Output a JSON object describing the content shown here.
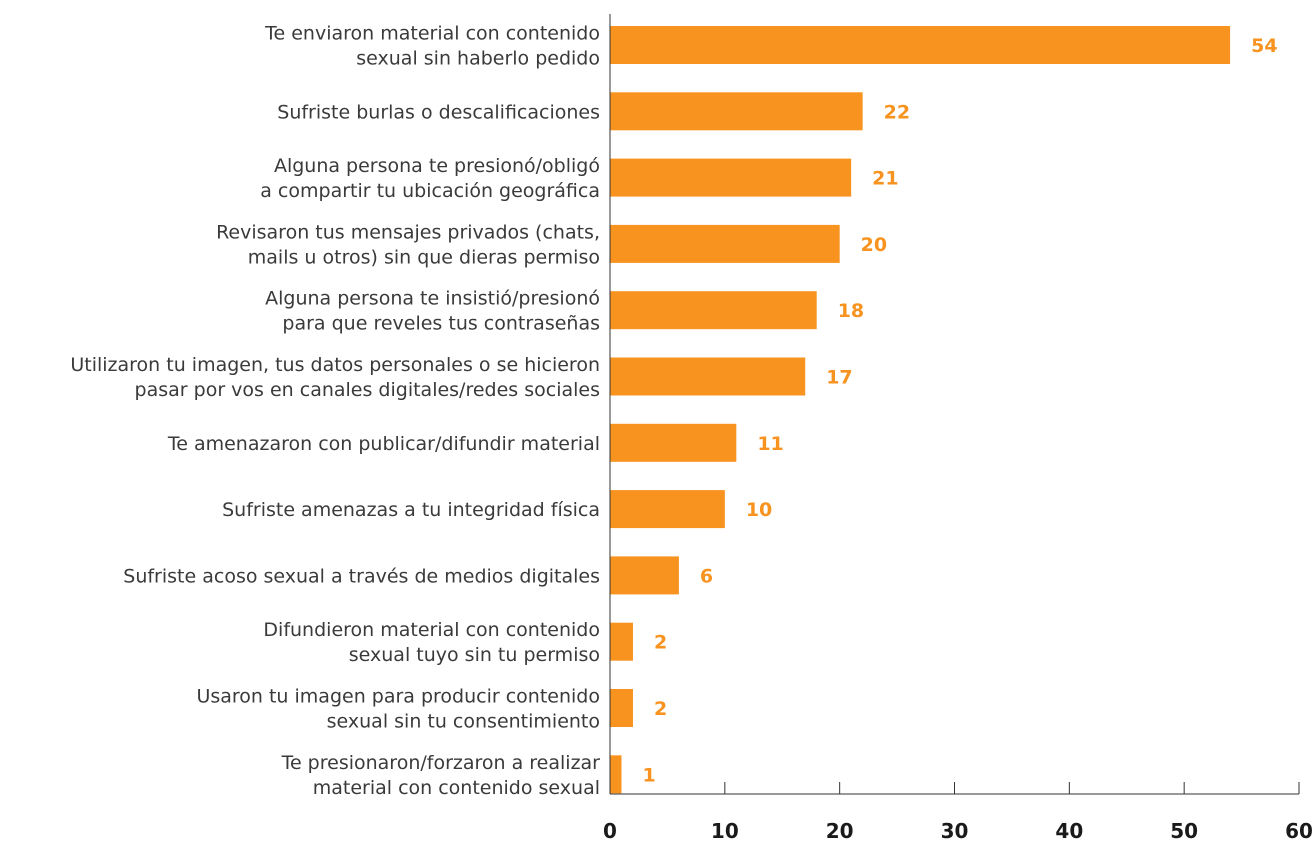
{
  "chart_data": {
    "type": "bar",
    "orientation": "horizontal",
    "categories": [
      [
        "Te enviaron material con contenido",
        "sexual sin haberlo pedido"
      ],
      [
        "Sufriste burlas o descalificaciones"
      ],
      [
        "Alguna persona te presionó/obligó",
        "a compartir tu ubicación geográfica"
      ],
      [
        "Revisaron tus mensajes privados (chats,",
        "mails u otros) sin que dieras permiso"
      ],
      [
        "Alguna persona te insistió/presionó",
        "para que reveles tus contraseñas"
      ],
      [
        "Utilizaron tu imagen, tus datos personales o se hicieron",
        "pasar por vos en canales digitales/redes sociales"
      ],
      [
        "Te amenazaron con publicar/difundir material"
      ],
      [
        "Sufriste amenazas a tu integridad física"
      ],
      [
        "Sufriste acoso sexual a través de medios digitales"
      ],
      [
        "Difundieron material con contenido",
        "sexual tuyo sin tu permiso"
      ],
      [
        "Usaron tu imagen para producir contenido",
        "sexual sin tu consentimiento"
      ],
      [
        "Te presionaron/forzaron a realizar",
        "material con contenido sexual"
      ]
    ],
    "values": [
      54,
      22,
      21,
      20,
      18,
      17,
      11,
      10,
      6,
      2,
      2,
      1
    ],
    "xlim": [
      0,
      60
    ],
    "xticks": [
      0,
      10,
      20,
      30,
      40,
      50,
      60
    ],
    "grid": false,
    "legend": "none",
    "colors": {
      "bar": "#F7931E",
      "value_label": "#F7931E",
      "axis": "#333333",
      "category_text": "#3a3a3a"
    }
  }
}
